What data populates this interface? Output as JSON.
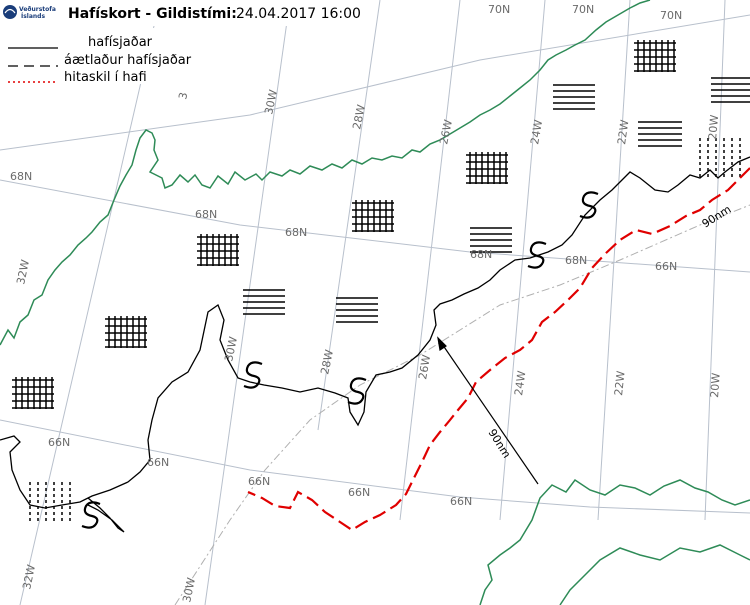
{
  "header": {
    "logo_line1": "Veðurstofa",
    "logo_line2": "Íslands",
    "title_bold": "Hafískort - Gildistími:",
    "title_date": "24.04.2017 16:00"
  },
  "legend": [
    {
      "label": "hafísjaðar",
      "style": "solid"
    },
    {
      "label": "áætlaður hafísjaðar",
      "style": "dashed"
    },
    {
      "label": "hitaskil í hafi",
      "style": "dotted-red"
    }
  ],
  "grid_labels": {
    "lat": [
      "70N",
      "70N",
      "70N",
      "68N",
      "68N",
      "68N",
      "68N",
      "68N",
      "66N",
      "66N",
      "66N",
      "66N",
      "66N",
      "66N"
    ],
    "lon": [
      "32W",
      "30W",
      "28W",
      "26W",
      "24W",
      "22W",
      "20W",
      "30W",
      "28W",
      "26W",
      "24W",
      "22W",
      "20W",
      "30W",
      "32W",
      "3"
    ]
  },
  "distance_labels": [
    "90nm",
    "90nm"
  ],
  "colors": {
    "coast": "#2e8b57",
    "grid": "#b4bcc8",
    "ice_edge": "#000000",
    "sea_front": "#e00000",
    "ship_track": "#b0b0b0"
  }
}
